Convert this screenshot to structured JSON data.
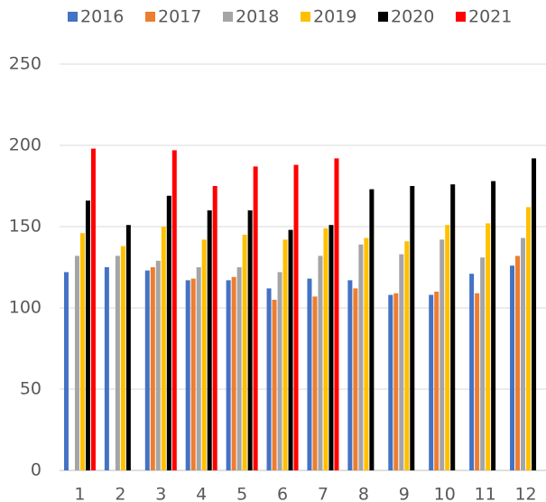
{
  "chart_data": {
    "type": "bar",
    "categories": [
      "1",
      "2",
      "3",
      "4",
      "5",
      "6",
      "7",
      "8",
      "9",
      "10",
      "11",
      "12"
    ],
    "series": [
      {
        "name": "2016",
        "color": "#4472c4",
        "values": [
          122,
          125,
          123,
          117,
          117,
          112,
          118,
          117,
          108,
          108,
          121,
          126
        ]
      },
      {
        "name": "2017",
        "color": "#ed7d31",
        "values": [
          null,
          null,
          125,
          118,
          119,
          105,
          107,
          112,
          109,
          110,
          109,
          132
        ]
      },
      {
        "name": "2018",
        "color": "#a5a5a5",
        "values": [
          132,
          132,
          129,
          125,
          125,
          122,
          132,
          139,
          133,
          142,
          131,
          143
        ]
      },
      {
        "name": "2019",
        "color": "#ffc000",
        "values": [
          146,
          138,
          150,
          142,
          145,
          142,
          149,
          143,
          141,
          151,
          152,
          162
        ]
      },
      {
        "name": "2020",
        "color": "#000000",
        "values": [
          166,
          151,
          169,
          160,
          160,
          148,
          151,
          173,
          175,
          176,
          178,
          192
        ]
      },
      {
        "name": "2021",
        "color": "#ff0000",
        "values": [
          198,
          null,
          197,
          175,
          187,
          188,
          192,
          null,
          null,
          null,
          null,
          null
        ]
      }
    ],
    "ylim": [
      0,
      250
    ],
    "yticks": [
      0,
      50,
      100,
      150,
      200,
      250
    ],
    "grid": true,
    "legend": "top"
  }
}
